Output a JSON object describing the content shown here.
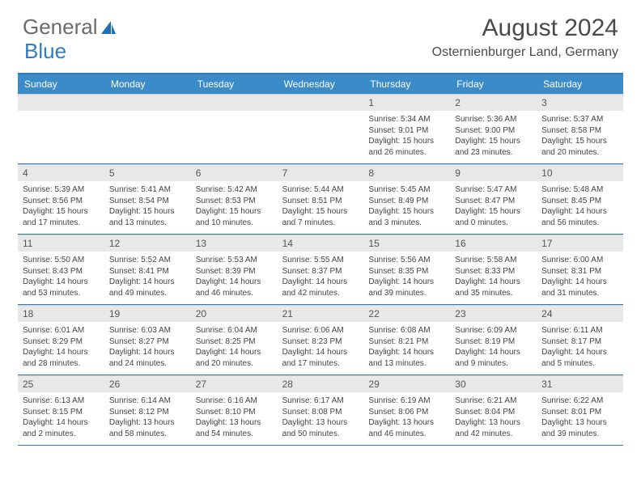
{
  "logo": {
    "word1": "General",
    "word2": "Blue"
  },
  "title": "August 2024",
  "location": "Osternienburger Land, Germany",
  "colors": {
    "header_bg": "#3b8bc9",
    "accent": "#2f7bbf",
    "date_bg": "#e8e8e8",
    "text_dark": "#4a4a4a",
    "text_body": "#444444"
  },
  "dayNames": [
    "Sunday",
    "Monday",
    "Tuesday",
    "Wednesday",
    "Thursday",
    "Friday",
    "Saturday"
  ],
  "weeks": [
    [
      null,
      null,
      null,
      null,
      {
        "d": "1",
        "sr": "5:34 AM",
        "ss": "9:01 PM",
        "dl": "15 hours and 26 minutes."
      },
      {
        "d": "2",
        "sr": "5:36 AM",
        "ss": "9:00 PM",
        "dl": "15 hours and 23 minutes."
      },
      {
        "d": "3",
        "sr": "5:37 AM",
        "ss": "8:58 PM",
        "dl": "15 hours and 20 minutes."
      }
    ],
    [
      {
        "d": "4",
        "sr": "5:39 AM",
        "ss": "8:56 PM",
        "dl": "15 hours and 17 minutes."
      },
      {
        "d": "5",
        "sr": "5:41 AM",
        "ss": "8:54 PM",
        "dl": "15 hours and 13 minutes."
      },
      {
        "d": "6",
        "sr": "5:42 AM",
        "ss": "8:53 PM",
        "dl": "15 hours and 10 minutes."
      },
      {
        "d": "7",
        "sr": "5:44 AM",
        "ss": "8:51 PM",
        "dl": "15 hours and 7 minutes."
      },
      {
        "d": "8",
        "sr": "5:45 AM",
        "ss": "8:49 PM",
        "dl": "15 hours and 3 minutes."
      },
      {
        "d": "9",
        "sr": "5:47 AM",
        "ss": "8:47 PM",
        "dl": "15 hours and 0 minutes."
      },
      {
        "d": "10",
        "sr": "5:48 AM",
        "ss": "8:45 PM",
        "dl": "14 hours and 56 minutes."
      }
    ],
    [
      {
        "d": "11",
        "sr": "5:50 AM",
        "ss": "8:43 PM",
        "dl": "14 hours and 53 minutes."
      },
      {
        "d": "12",
        "sr": "5:52 AM",
        "ss": "8:41 PM",
        "dl": "14 hours and 49 minutes."
      },
      {
        "d": "13",
        "sr": "5:53 AM",
        "ss": "8:39 PM",
        "dl": "14 hours and 46 minutes."
      },
      {
        "d": "14",
        "sr": "5:55 AM",
        "ss": "8:37 PM",
        "dl": "14 hours and 42 minutes."
      },
      {
        "d": "15",
        "sr": "5:56 AM",
        "ss": "8:35 PM",
        "dl": "14 hours and 39 minutes."
      },
      {
        "d": "16",
        "sr": "5:58 AM",
        "ss": "8:33 PM",
        "dl": "14 hours and 35 minutes."
      },
      {
        "d": "17",
        "sr": "6:00 AM",
        "ss": "8:31 PM",
        "dl": "14 hours and 31 minutes."
      }
    ],
    [
      {
        "d": "18",
        "sr": "6:01 AM",
        "ss": "8:29 PM",
        "dl": "14 hours and 28 minutes."
      },
      {
        "d": "19",
        "sr": "6:03 AM",
        "ss": "8:27 PM",
        "dl": "14 hours and 24 minutes."
      },
      {
        "d": "20",
        "sr": "6:04 AM",
        "ss": "8:25 PM",
        "dl": "14 hours and 20 minutes."
      },
      {
        "d": "21",
        "sr": "6:06 AM",
        "ss": "8:23 PM",
        "dl": "14 hours and 17 minutes."
      },
      {
        "d": "22",
        "sr": "6:08 AM",
        "ss": "8:21 PM",
        "dl": "14 hours and 13 minutes."
      },
      {
        "d": "23",
        "sr": "6:09 AM",
        "ss": "8:19 PM",
        "dl": "14 hours and 9 minutes."
      },
      {
        "d": "24",
        "sr": "6:11 AM",
        "ss": "8:17 PM",
        "dl": "14 hours and 5 minutes."
      }
    ],
    [
      {
        "d": "25",
        "sr": "6:13 AM",
        "ss": "8:15 PM",
        "dl": "14 hours and 2 minutes."
      },
      {
        "d": "26",
        "sr": "6:14 AM",
        "ss": "8:12 PM",
        "dl": "13 hours and 58 minutes."
      },
      {
        "d": "27",
        "sr": "6:16 AM",
        "ss": "8:10 PM",
        "dl": "13 hours and 54 minutes."
      },
      {
        "d": "28",
        "sr": "6:17 AM",
        "ss": "8:08 PM",
        "dl": "13 hours and 50 minutes."
      },
      {
        "d": "29",
        "sr": "6:19 AM",
        "ss": "8:06 PM",
        "dl": "13 hours and 46 minutes."
      },
      {
        "d": "30",
        "sr": "6:21 AM",
        "ss": "8:04 PM",
        "dl": "13 hours and 42 minutes."
      },
      {
        "d": "31",
        "sr": "6:22 AM",
        "ss": "8:01 PM",
        "dl": "13 hours and 39 minutes."
      }
    ]
  ],
  "labels": {
    "sunrise": "Sunrise: ",
    "sunset": "Sunset: ",
    "daylight": "Daylight: "
  }
}
